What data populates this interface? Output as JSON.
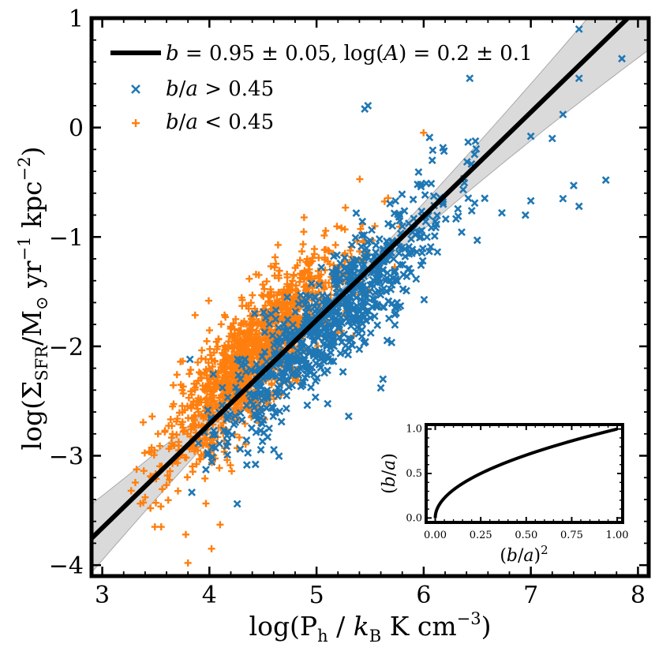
{
  "chart_data": [
    {
      "type": "scatter",
      "role": "main",
      "xlabel": "log(P_h / k_B K cm^-3)",
      "ylabel": "log(Σ_SFR / M_⊙ yr^-1 kpc^-2)",
      "xlim": [
        2.9,
        8.1
      ],
      "ylim": [
        -4.1,
        1.0
      ],
      "x_ticks": [
        3,
        4,
        5,
        6,
        7,
        8
      ],
      "y_ticks": [
        -4,
        -3,
        -2,
        -1,
        0,
        1
      ],
      "x_tick_labels": [
        "3",
        "4",
        "5",
        "6",
        "7",
        "8"
      ],
      "y_tick_labels": [
        "−4",
        "−3",
        "−2",
        "−1",
        "0",
        "1"
      ],
      "colors": {
        "blue": "#1f77b4",
        "orange": "#ff7f0e",
        "band": "#d3d3d3",
        "line": "#000000"
      },
      "fit": {
        "label": "b = 0.95 ± 0.05, log(A) = 0.2 ± 0.1",
        "slope": 0.95,
        "intercept_at_5": -1.76,
        "band_halfwidth_at_center": 0.06,
        "band_center_x": 5.1,
        "band_growth": 0.13
      },
      "series": [
        {
          "name": "b/a > 0.45",
          "marker": "x",
          "color": "#1f77b4",
          "n": 800,
          "x_range": [
            3.8,
            6.6
          ],
          "y_scatter": 0.25,
          "outliers": [
            {
              "x": 7.45,
              "y": 0.9
            },
            {
              "x": 7.85,
              "y": 0.63
            },
            {
              "x": 7.45,
              "y": 0.45
            },
            {
              "x": 6.43,
              "y": 0.45
            },
            {
              "x": 5.45,
              "y": 0.17
            },
            {
              "x": 5.48,
              "y": 0.2
            },
            {
              "x": 7.3,
              "y": 0.12
            },
            {
              "x": 7.0,
              "y": -0.08
            },
            {
              "x": 7.2,
              "y": -0.1
            },
            {
              "x": 7.4,
              "y": -0.53
            },
            {
              "x": 7.7,
              "y": -0.48
            },
            {
              "x": 7.3,
              "y": -0.65
            },
            {
              "x": 7.45,
              "y": -0.72
            },
            {
              "x": 7.0,
              "y": -0.67
            },
            {
              "x": 6.95,
              "y": -0.8
            },
            {
              "x": 6.73,
              "y": -0.78
            },
            {
              "x": 6.5,
              "y": -1.03
            },
            {
              "x": 5.62,
              "y": -2.3
            },
            {
              "x": 5.6,
              "y": -2.38
            },
            {
              "x": 5.3,
              "y": -2.64
            },
            {
              "x": 4.26,
              "y": -3.44
            },
            {
              "x": 6.08,
              "y": -0.3
            }
          ]
        },
        {
          "name": "b/a < 0.45",
          "marker": "+",
          "color": "#ff7f0e",
          "n": 1400,
          "x_range": [
            3.5,
            5.9
          ],
          "y_scatter": 0.27,
          "outliers": [
            {
              "x": 3.55,
              "y": -3.65
            },
            {
              "x": 3.78,
              "y": -3.72
            },
            {
              "x": 4.02,
              "y": -3.85
            },
            {
              "x": 3.4,
              "y": -3.38
            },
            {
              "x": 3.45,
              "y": -3.48
            },
            {
              "x": 3.27,
              "y": -3.32
            },
            {
              "x": 3.8,
              "y": -3.98
            },
            {
              "x": 4.1,
              "y": -3.63
            }
          ]
        }
      ]
    },
    {
      "type": "line",
      "role": "inset",
      "xlabel": "(b/a)^2",
      "ylabel": "(b/a)",
      "xlim": [
        -0.05,
        1.03
      ],
      "ylim": [
        -0.05,
        1.05
      ],
      "x_ticks": [
        0.0,
        0.25,
        0.5,
        0.75,
        1.0
      ],
      "y_ticks": [
        0.0,
        0.5,
        1.0
      ],
      "x_tick_labels": [
        "0.00",
        "0.25",
        "0.50",
        "0.75",
        "1.00"
      ],
      "y_tick_labels": [
        "0.0",
        "0.5",
        "1.0"
      ],
      "series": [
        {
          "name": "sqrt curve",
          "x_start": 0.0,
          "x_end": 1.0
        }
      ]
    }
  ]
}
